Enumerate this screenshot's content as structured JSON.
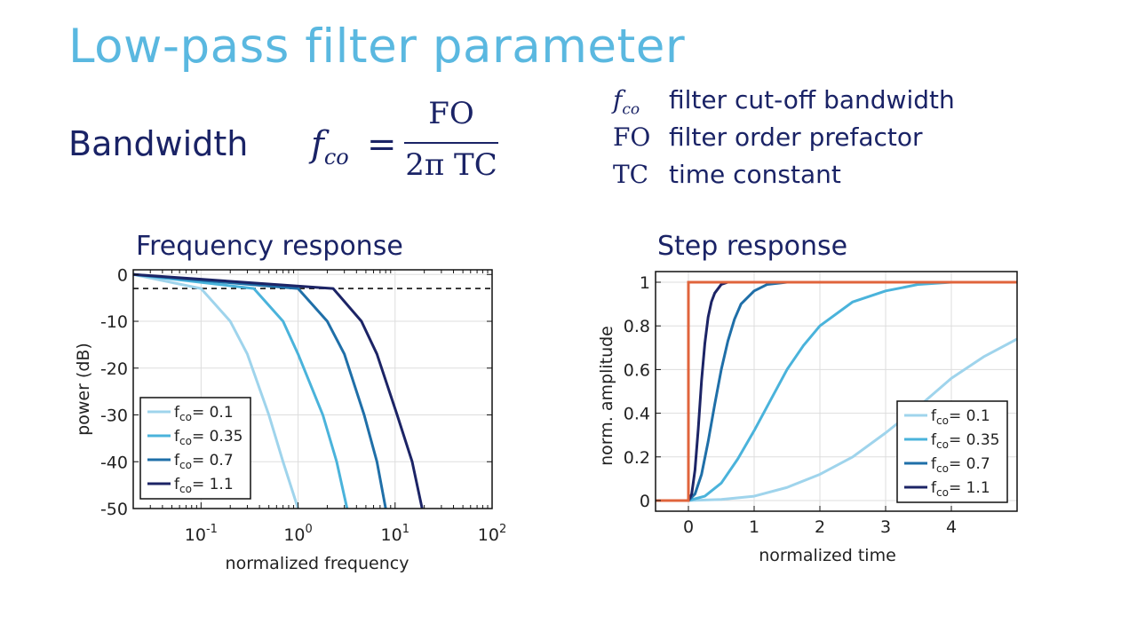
{
  "slide": {
    "title": "Low-pass filter parameter",
    "bandwidth_label": "Bandwidth",
    "formula": {
      "lhs_symbol": "f",
      "lhs_subscript": "co",
      "equals": "=",
      "numerator": "FO",
      "denominator": "2π TC"
    },
    "definitions": [
      {
        "symbol": "f",
        "subscript": "co",
        "italic": true,
        "text": "filter cut-off bandwidth"
      },
      {
        "symbol": "FO",
        "subscript": "",
        "italic": false,
        "text": "filter order prefactor"
      },
      {
        "symbol": "TC",
        "subscript": "",
        "italic": false,
        "text": "time constant"
      }
    ]
  },
  "colors": {
    "title": "#5ab8e0",
    "text": "#1a2366",
    "series": [
      "#9fd4ec",
      "#4ab3db",
      "#1f6fa8",
      "#1c2466"
    ],
    "step_input": "#e0643c"
  },
  "chart_data": [
    {
      "type": "line",
      "title": "Frequency response",
      "xlabel": "normalized frequency",
      "ylabel": "power (dB)",
      "xscale": "log",
      "xlim": [
        0.02,
        100
      ],
      "ylim": [
        -50,
        1
      ],
      "xticks": [
        {
          "value": 0.1,
          "base": "10",
          "exp": "-1"
        },
        {
          "value": 1,
          "base": "10",
          "exp": "0"
        },
        {
          "value": 10,
          "base": "10",
          "exp": "1"
        },
        {
          "value": 100,
          "base": "10",
          "exp": "2"
        }
      ],
      "yticks": [
        0,
        -10,
        -20,
        -30,
        -40,
        -50
      ],
      "grid": true,
      "reference_line": {
        "y": -3,
        "style": "dashed"
      },
      "legend_position": "bottom-left",
      "series": [
        {
          "legend_prefix": "f",
          "legend_sub": "co",
          "legend_suffix": "= 0.1",
          "fco": 0.1,
          "x": [
            0.02,
            0.1,
            0.2,
            0.3,
            0.5,
            0.7,
            1.0
          ],
          "y": [
            0,
            -3,
            -10,
            -17,
            -30,
            -40,
            -50
          ]
        },
        {
          "legend_prefix": "f",
          "legend_sub": "co",
          "legend_suffix": "= 0.35",
          "fco": 0.35,
          "x": [
            0.02,
            0.35,
            0.7,
            1.0,
            1.8,
            2.5,
            3.2
          ],
          "y": [
            0,
            -3,
            -10,
            -17,
            -30,
            -40,
            -50
          ]
        },
        {
          "legend_prefix": "f",
          "legend_sub": "co",
          "legend_suffix": "= 0.7",
          "fco": 0.7,
          "x": [
            0.02,
            1.0,
            2.0,
            3.0,
            4.8,
            6.5,
            8.0
          ],
          "y": [
            0,
            -3,
            -10,
            -17,
            -30,
            -40,
            -50
          ]
        },
        {
          "legend_prefix": "f",
          "legend_sub": "co",
          "legend_suffix": "= 1.1",
          "fco": 1.1,
          "x": [
            0.02,
            2.3,
            4.5,
            6.5,
            10.5,
            15.0,
            19.0
          ],
          "y": [
            0,
            -3,
            -10,
            -17,
            -30,
            -40,
            -50
          ]
        }
      ]
    },
    {
      "type": "line",
      "title": "Step response",
      "xlabel": "normalized time",
      "ylabel": "norm. amplitude",
      "xlim": [
        -0.5,
        5
      ],
      "ylim": [
        0,
        1
      ],
      "xticks": [
        0,
        1,
        2,
        3,
        4
      ],
      "yticks": [
        0,
        0.2,
        0.4,
        0.6,
        0.8,
        1
      ],
      "grid": true,
      "legend_position": "bottom-right",
      "input_step": {
        "x": [
          -0.5,
          0,
          0,
          5
        ],
        "y": [
          0,
          0,
          1,
          1
        ]
      },
      "series": [
        {
          "legend_prefix": "f",
          "legend_sub": "co",
          "legend_suffix": "= 0.1",
          "fco": 0.1,
          "x": [
            0,
            0.5,
            1.0,
            1.5,
            2.0,
            2.5,
            3.0,
            3.5,
            4.0,
            4.5,
            5.0
          ],
          "y": [
            0,
            0.005,
            0.02,
            0.06,
            0.12,
            0.2,
            0.31,
            0.43,
            0.56,
            0.66,
            0.74
          ]
        },
        {
          "legend_prefix": "f",
          "legend_sub": "co",
          "legend_suffix": "= 0.35",
          "fco": 0.35,
          "x": [
            0,
            0.25,
            0.5,
            0.75,
            1.0,
            1.25,
            1.5,
            1.75,
            2.0,
            2.5,
            3.0,
            3.5,
            4.0,
            5.0
          ],
          "y": [
            0,
            0.02,
            0.08,
            0.19,
            0.32,
            0.46,
            0.6,
            0.71,
            0.8,
            0.91,
            0.96,
            0.99,
            1.0,
            1.0
          ]
        },
        {
          "legend_prefix": "f",
          "legend_sub": "co",
          "legend_suffix": "= 0.7",
          "fco": 0.7,
          "x": [
            0,
            0.1,
            0.2,
            0.3,
            0.4,
            0.5,
            0.6,
            0.7,
            0.8,
            1.0,
            1.2,
            1.5,
            2.0,
            5.0
          ],
          "y": [
            0,
            0.03,
            0.12,
            0.27,
            0.44,
            0.6,
            0.73,
            0.83,
            0.9,
            0.96,
            0.99,
            1.0,
            1.0,
            1.0
          ]
        },
        {
          "legend_prefix": "f",
          "legend_sub": "co",
          "legend_suffix": "= 1.1",
          "fco": 1.1,
          "x": [
            0,
            0.05,
            0.1,
            0.15,
            0.2,
            0.25,
            0.3,
            0.35,
            0.4,
            0.5,
            0.6,
            0.8,
            1.0,
            5.0
          ],
          "y": [
            0,
            0.03,
            0.14,
            0.33,
            0.55,
            0.72,
            0.84,
            0.91,
            0.95,
            0.99,
            1.0,
            1.0,
            1.0,
            1.0
          ]
        }
      ]
    }
  ]
}
